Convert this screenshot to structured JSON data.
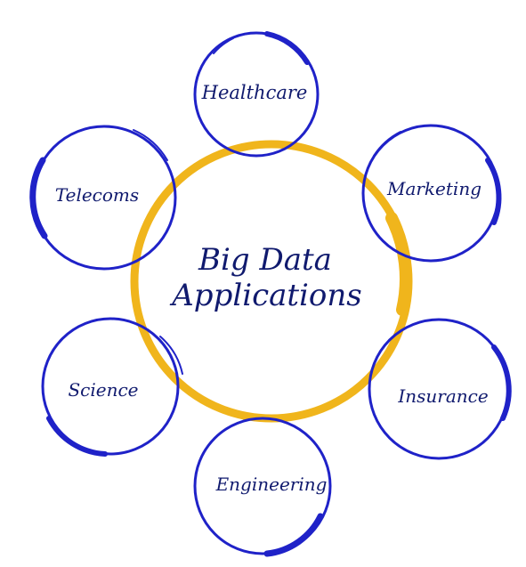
{
  "diagram": {
    "center": {
      "line1": "Big Data",
      "line2": "Applications"
    },
    "nodes": [
      {
        "label": "Healthcare"
      },
      {
        "label": "Marketing"
      },
      {
        "label": "Insurance"
      },
      {
        "label": "Engineering"
      },
      {
        "label": "Science"
      },
      {
        "label": "Telecoms"
      }
    ]
  },
  "colors": {
    "center_ring": "#f0b51c",
    "node_rings": "#1f22c8",
    "text": "#101a6e",
    "background": "#ffffff"
  }
}
